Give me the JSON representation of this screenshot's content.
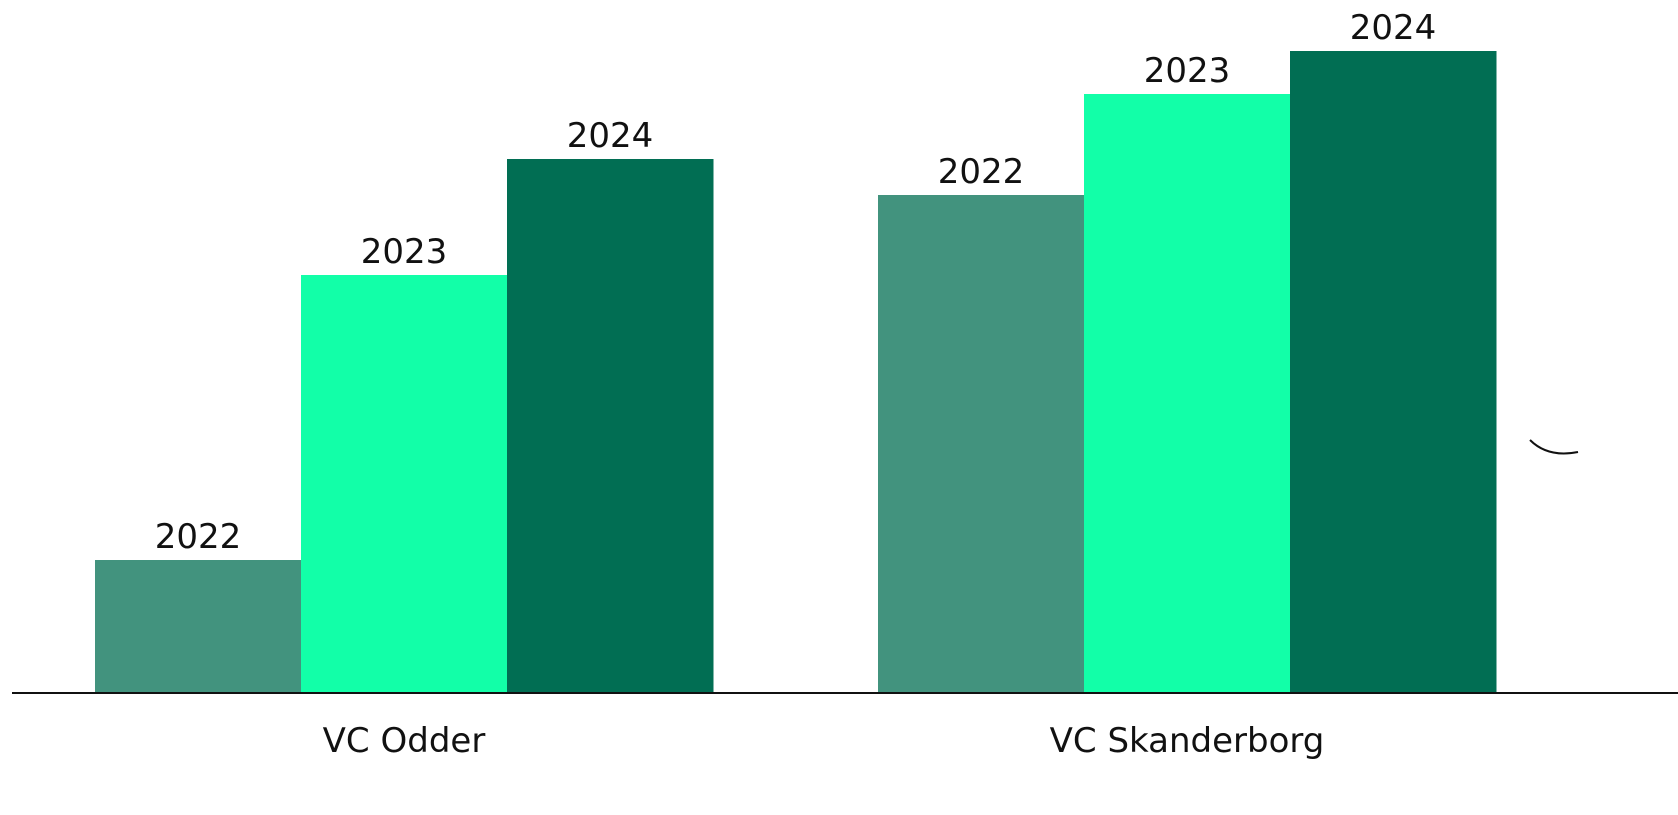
{
  "chart_data": {
    "type": "bar",
    "categories": [
      "VC Odder",
      "VC Skanderborg"
    ],
    "series": [
      {
        "name": "2022",
        "color": "#42937e",
        "values": [
          133,
          498
        ]
      },
      {
        "name": "2023",
        "color": "#12ffa8",
        "values": [
          418,
          599
        ]
      },
      {
        "name": "2024",
        "color": "#016e53",
        "values": [
          534,
          642
        ]
      }
    ]
  }
}
